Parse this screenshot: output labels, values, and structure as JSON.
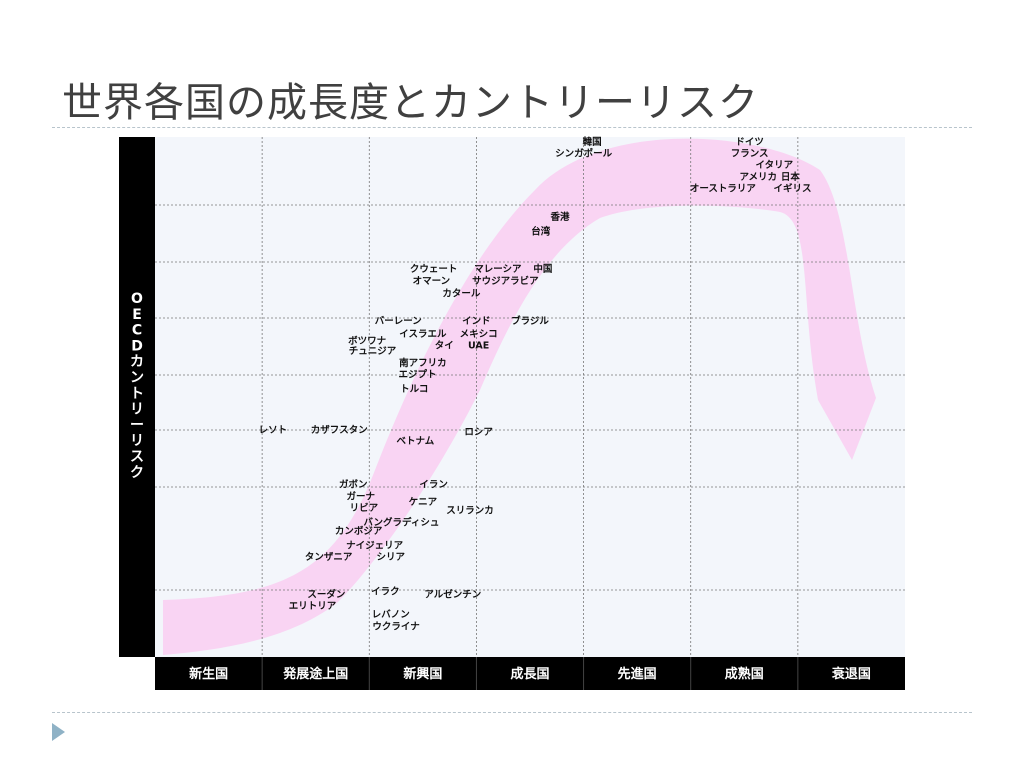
{
  "slide": {
    "title": "世界各国の成長度とカントリーリスク"
  },
  "colors": {
    "band": "#f9d4f3",
    "plot_bg": "#f3f6fb",
    "axis_bar": "#000000",
    "grid": "#777777"
  },
  "chart_data": {
    "type": "scatter",
    "ylabel": "OECDカントリーリスク",
    "categories": [
      "新生国",
      "発展途上国",
      "新興国",
      "成長国",
      "先進国",
      "成熟国",
      "衰退国"
    ],
    "x_range": [
      0,
      7
    ],
    "y_range": [
      0,
      9
    ],
    "grid": true,
    "points": [
      {
        "label": "韓国",
        "x": 4.08,
        "y": 8.86
      },
      {
        "label": "シンガポール",
        "x": 4.0,
        "y": 8.66
      },
      {
        "label": "ドイツ",
        "x": 5.55,
        "y": 8.86
      },
      {
        "label": "フランス",
        "x": 5.55,
        "y": 8.66
      },
      {
        "label": "イタリア",
        "x": 5.78,
        "y": 8.46
      },
      {
        "label": "アメリカ",
        "x": 5.63,
        "y": 8.26
      },
      {
        "label": "日本",
        "x": 5.93,
        "y": 8.26
      },
      {
        "label": "オーストラリア",
        "x": 5.3,
        "y": 8.06
      },
      {
        "label": "イギリス",
        "x": 5.95,
        "y": 8.06
      },
      {
        "label": "香港",
        "x": 3.78,
        "y": 7.56
      },
      {
        "label": "台湾",
        "x": 3.6,
        "y": 7.31
      },
      {
        "label": "クウェート",
        "x": 2.6,
        "y": 6.66
      },
      {
        "label": "マレーシア",
        "x": 3.2,
        "y": 6.66
      },
      {
        "label": "中国",
        "x": 3.62,
        "y": 6.66
      },
      {
        "label": "オマーン",
        "x": 2.58,
        "y": 6.46
      },
      {
        "label": "サウジアラビア",
        "x": 3.27,
        "y": 6.46
      },
      {
        "label": "カタール",
        "x": 2.86,
        "y": 6.24
      },
      {
        "label": "バーレーン",
        "x": 2.27,
        "y": 5.76
      },
      {
        "label": "インド",
        "x": 3.0,
        "y": 5.76
      },
      {
        "label": "ブラジル",
        "x": 3.5,
        "y": 5.76
      },
      {
        "label": "イスラエル",
        "x": 2.5,
        "y": 5.54
      },
      {
        "label": "メキシコ",
        "x": 3.02,
        "y": 5.54
      },
      {
        "label": "ボツワナ",
        "x": 1.98,
        "y": 5.42
      },
      {
        "label": "タイ",
        "x": 2.7,
        "y": 5.34
      },
      {
        "label": "UAE",
        "x": 3.02,
        "y": 5.34
      },
      {
        "label": "チュニジア",
        "x": 2.03,
        "y": 5.24
      },
      {
        "label": "南アフリカ",
        "x": 2.5,
        "y": 5.04
      },
      {
        "label": "エジプト",
        "x": 2.45,
        "y": 4.84
      },
      {
        "label": "トルコ",
        "x": 2.42,
        "y": 4.59
      },
      {
        "label": "レソト",
        "x": 1.1,
        "y": 3.88
      },
      {
        "label": "カザフスタン",
        "x": 1.72,
        "y": 3.88
      },
      {
        "label": "ロシア",
        "x": 3.02,
        "y": 3.84
      },
      {
        "label": "ベトナム",
        "x": 2.43,
        "y": 3.69
      },
      {
        "label": "ガボン",
        "x": 1.85,
        "y": 2.93
      },
      {
        "label": "イラン",
        "x": 2.6,
        "y": 2.93
      },
      {
        "label": "ガーナ",
        "x": 1.92,
        "y": 2.73
      },
      {
        "label": "ケニア",
        "x": 2.5,
        "y": 2.63
      },
      {
        "label": "リビア",
        "x": 1.95,
        "y": 2.53
      },
      {
        "label": "スリランカ",
        "x": 2.94,
        "y": 2.48
      },
      {
        "label": "バングラディシュ",
        "x": 2.3,
        "y": 2.28
      },
      {
        "label": "カンボジア",
        "x": 1.9,
        "y": 2.13
      },
      {
        "label": "ナイジェリア",
        "x": 2.05,
        "y": 1.88
      },
      {
        "label": "タンザニア",
        "x": 1.62,
        "y": 1.68
      },
      {
        "label": "シリア",
        "x": 2.2,
        "y": 1.68
      },
      {
        "label": "スーダン",
        "x": 1.6,
        "y": 1.03
      },
      {
        "label": "イラク",
        "x": 2.15,
        "y": 1.08
      },
      {
        "label": "アルゼンチン",
        "x": 2.78,
        "y": 1.03
      },
      {
        "label": "エリトリア",
        "x": 1.47,
        "y": 0.83
      },
      {
        "label": "レバノン",
        "x": 2.2,
        "y": 0.68
      },
      {
        "label": "ウクライナ",
        "x": 2.25,
        "y": 0.48
      }
    ]
  }
}
